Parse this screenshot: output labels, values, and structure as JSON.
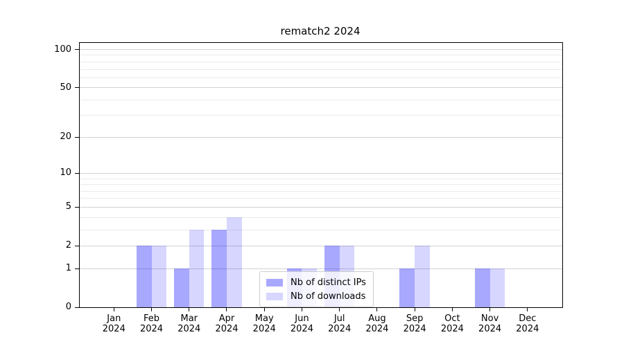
{
  "chart_data": {
    "type": "bar",
    "title": "rematch2 2024",
    "categories": [
      {
        "month": "Jan",
        "year": "2024"
      },
      {
        "month": "Feb",
        "year": "2024"
      },
      {
        "month": "Mar",
        "year": "2024"
      },
      {
        "month": "Apr",
        "year": "2024"
      },
      {
        "month": "May",
        "year": "2024"
      },
      {
        "month": "Jun",
        "year": "2024"
      },
      {
        "month": "Jul",
        "year": "2024"
      },
      {
        "month": "Aug",
        "year": "2024"
      },
      {
        "month": "Sep",
        "year": "2024"
      },
      {
        "month": "Oct",
        "year": "2024"
      },
      {
        "month": "Nov",
        "year": "2024"
      },
      {
        "month": "Dec",
        "year": "2024"
      }
    ],
    "series": [
      {
        "name": "Nb of distinct IPs",
        "color": "rgba(0, 0, 255, 0.34)",
        "values": [
          0,
          2,
          1,
          3,
          0,
          1,
          2,
          0,
          1,
          0,
          1,
          0
        ]
      },
      {
        "name": "Nb of downloads",
        "color": "rgba(0, 0, 255, 0.16)",
        "values": [
          0,
          2,
          3,
          4,
          0,
          1,
          2,
          0,
          2,
          0,
          1,
          0
        ]
      }
    ],
    "xlabel": "",
    "ylabel": "",
    "yscale": "log1p",
    "ylim": [
      0,
      113
    ],
    "y_major_ticks": [
      0,
      1,
      2,
      5,
      10,
      20,
      50,
      100
    ],
    "y_minor_ticks": [
      3,
      4,
      6,
      7,
      8,
      9,
      30,
      40,
      60,
      70,
      80,
      90
    ],
    "grid": "horizontal",
    "legend_position": "lower center"
  },
  "colors": {
    "major_grid": "#d2d2d2",
    "minor_grid": "#ebebeb",
    "spine": "#000000",
    "text": "#000000",
    "legend_border": "#cccccc",
    "legend_bg": "rgba(255,255,255,0.8)"
  }
}
